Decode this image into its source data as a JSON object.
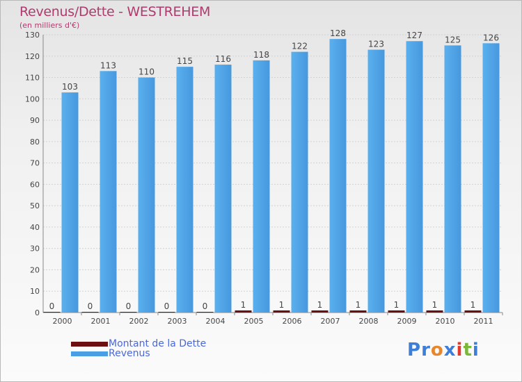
{
  "title": "Revenus/Dette - WESTREHEM",
  "subtitle": "(en milliers d'€)",
  "legend": [
    {
      "label": "Montant de la Dette",
      "color": "#6b0f12"
    },
    {
      "label": "Revenus",
      "color": "#4a9fe4"
    }
  ],
  "logo": {
    "text": "Proxiti",
    "colors": [
      "#3d7fd6",
      "#3d7fd6",
      "#e8862c",
      "#3d7fd6",
      "#e23b2e",
      "#7ab83c",
      "#3d7fd6"
    ]
  },
  "chart_data": {
    "type": "bar",
    "categories": [
      "2000",
      "2001",
      "2002",
      "2003",
      "2004",
      "2005",
      "2006",
      "2007",
      "2008",
      "2009",
      "2010",
      "2011"
    ],
    "series": [
      {
        "name": "Montant de la Dette",
        "color": "#6b0f12",
        "values": [
          0,
          0,
          0,
          0,
          0,
          1,
          1,
          1,
          1,
          1,
          1,
          1
        ]
      },
      {
        "name": "Revenus",
        "color": "#4a9fe4",
        "values": [
          103,
          113,
          110,
          115,
          116,
          118,
          122,
          128,
          123,
          127,
          125,
          126
        ]
      }
    ],
    "ylim": [
      0,
      130
    ],
    "yticks": [
      0,
      10,
      20,
      30,
      40,
      50,
      60,
      70,
      80,
      90,
      100,
      110,
      120,
      130
    ],
    "xlabel": "",
    "ylabel": "",
    "grid": true,
    "legend_position": "bottom-left"
  }
}
